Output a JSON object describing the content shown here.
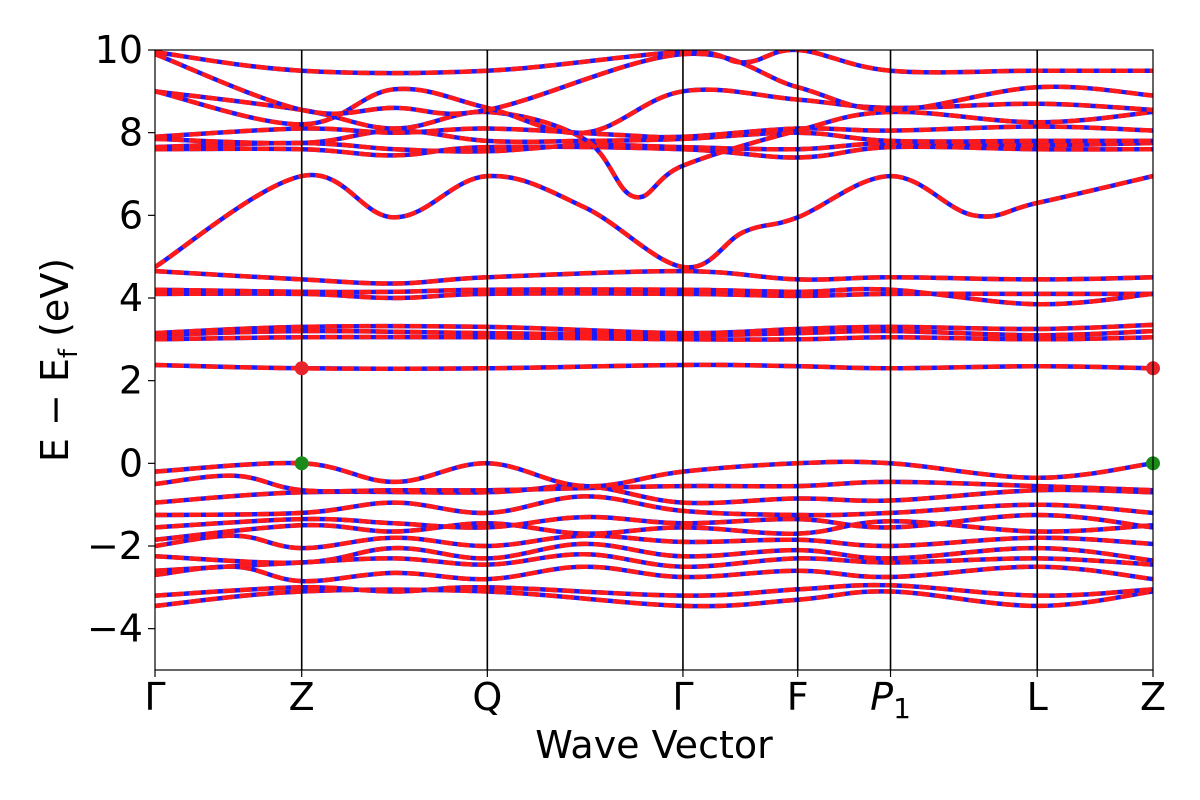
{
  "chart_data": {
    "type": "line",
    "title": "",
    "xlabel": "Wave Vector",
    "ylabel": "E  −  E",
    "ylabel_sub": "f",
    "ylabel_unit": " (eV)",
    "ylim": [
      -5,
      10
    ],
    "xlim": [
      0,
      1
    ],
    "grid": false,
    "y_ticks": [
      {
        "value": -4,
        "label": "−4"
      },
      {
        "value": -2,
        "label": "−2"
      },
      {
        "value": 0,
        "label": "0"
      },
      {
        "value": 2,
        "label": "2"
      },
      {
        "value": 4,
        "label": "4"
      },
      {
        "value": 6,
        "label": "6"
      },
      {
        "value": 8,
        "label": "8"
      },
      {
        "value": 10,
        "label": "10"
      }
    ],
    "kpoints": [
      {
        "label": "Γ",
        "x": 0.0
      },
      {
        "label": "Z",
        "x": 0.147
      },
      {
        "label": "Q",
        "x": 0.333
      },
      {
        "label": "Γ",
        "x": 0.529
      },
      {
        "label": "F",
        "x": 0.644
      },
      {
        "label": "P",
        "sub": "1",
        "x": 0.737
      },
      {
        "label": "L",
        "x": 0.884
      },
      {
        "label": "Z",
        "x": 1.0
      }
    ],
    "series_colors": {
      "solid": "#ff1a1a",
      "dashed": "#1a1aff"
    },
    "markers": [
      {
        "x": 0.147,
        "y": 2.3,
        "color": "#e8232c"
      },
      {
        "x": 1.0,
        "y": 2.3,
        "color": "#e8232c"
      },
      {
        "x": 0.147,
        "y": 0.0,
        "color": "#1a8a1a"
      },
      {
        "x": 1.0,
        "y": 0.0,
        "color": "#1a8a1a"
      }
    ],
    "bands": [
      [
        [
          0,
          -3.45
        ],
        [
          0.147,
          -3.1
        ],
        [
          0.333,
          -3.1
        ],
        [
          0.529,
          -3.45
        ],
        [
          0.644,
          -3.3
        ],
        [
          0.737,
          -3.1
        ],
        [
          0.884,
          -3.45
        ],
        [
          1.0,
          -3.1
        ]
      ],
      [
        [
          0,
          -3.2
        ],
        [
          0.147,
          -3.0
        ],
        [
          0.24,
          -3.1
        ],
        [
          0.333,
          -3.0
        ],
        [
          0.529,
          -3.2
        ],
        [
          0.644,
          -3.05
        ],
        [
          0.737,
          -2.95
        ],
        [
          0.884,
          -3.2
        ],
        [
          1.0,
          -3.05
        ]
      ],
      [
        [
          0,
          -2.7
        ],
        [
          0.08,
          -2.5
        ],
        [
          0.147,
          -2.85
        ],
        [
          0.24,
          -2.65
        ],
        [
          0.333,
          -2.8
        ],
        [
          0.43,
          -2.5
        ],
        [
          0.529,
          -2.75
        ],
        [
          0.644,
          -2.6
        ],
        [
          0.737,
          -2.75
        ],
        [
          0.884,
          -2.5
        ],
        [
          1.0,
          -2.8
        ]
      ],
      [
        [
          0,
          -2.6
        ],
        [
          0.147,
          -2.4
        ],
        [
          0.24,
          -2.3
        ],
        [
          0.333,
          -2.45
        ],
        [
          0.43,
          -2.2
        ],
        [
          0.529,
          -2.5
        ],
        [
          0.644,
          -2.3
        ],
        [
          0.737,
          -2.4
        ],
        [
          0.884,
          -2.3
        ],
        [
          1.0,
          -2.45
        ]
      ],
      [
        [
          0,
          -2.25
        ],
        [
          0.147,
          -2.4
        ],
        [
          0.24,
          -2.05
        ],
        [
          0.333,
          -2.3
        ],
        [
          0.43,
          -1.95
        ],
        [
          0.529,
          -2.25
        ],
        [
          0.644,
          -2.1
        ],
        [
          0.737,
          -2.3
        ],
        [
          0.884,
          -2.05
        ],
        [
          1.0,
          -2.35
        ]
      ],
      [
        [
          0,
          -2.0
        ],
        [
          0.08,
          -1.75
        ],
        [
          0.147,
          -2.05
        ],
        [
          0.24,
          -1.8
        ],
        [
          0.333,
          -2.0
        ],
        [
          0.43,
          -1.75
        ],
        [
          0.529,
          -1.9
        ],
        [
          0.644,
          -1.85
        ],
        [
          0.737,
          -2.0
        ],
        [
          0.884,
          -1.8
        ],
        [
          1.0,
          -1.95
        ]
      ],
      [
        [
          0,
          -1.85
        ],
        [
          0.147,
          -1.5
        ],
        [
          0.24,
          -1.65
        ],
        [
          0.333,
          -1.45
        ],
        [
          0.43,
          -1.7
        ],
        [
          0.529,
          -1.55
        ],
        [
          0.644,
          -1.7
        ],
        [
          0.737,
          -1.4
        ],
        [
          0.884,
          -1.65
        ],
        [
          1.0,
          -1.5
        ]
      ],
      [
        [
          0,
          -1.55
        ],
        [
          0.147,
          -1.35
        ],
        [
          0.24,
          -1.45
        ],
        [
          0.333,
          -1.55
        ],
        [
          0.43,
          -1.3
        ],
        [
          0.529,
          -1.45
        ],
        [
          0.644,
          -1.35
        ],
        [
          0.737,
          -1.55
        ],
        [
          0.884,
          -1.25
        ],
        [
          1.0,
          -1.55
        ]
      ],
      [
        [
          0,
          -1.25
        ],
        [
          0.147,
          -1.2
        ],
        [
          0.24,
          -0.95
        ],
        [
          0.333,
          -1.2
        ],
        [
          0.43,
          -0.8
        ],
        [
          0.529,
          -1.15
        ],
        [
          0.644,
          -1.25
        ],
        [
          0.737,
          -1.2
        ],
        [
          0.884,
          -1.0
        ],
        [
          1.0,
          -1.2
        ]
      ],
      [
        [
          0,
          -0.95
        ],
        [
          0.147,
          -0.7
        ],
        [
          0.333,
          -0.7
        ],
        [
          0.43,
          -0.55
        ],
        [
          0.529,
          -0.95
        ],
        [
          0.644,
          -0.85
        ],
        [
          0.737,
          -0.9
        ],
        [
          0.884,
          -0.65
        ],
        [
          1.0,
          -0.7
        ]
      ],
      [
        [
          0,
          -0.5
        ],
        [
          0.08,
          -0.3
        ],
        [
          0.147,
          -0.65
        ],
        [
          0.24,
          -0.65
        ],
        [
          0.333,
          -0.65
        ],
        [
          0.43,
          -0.6
        ],
        [
          0.529,
          -0.55
        ],
        [
          0.644,
          -0.55
        ],
        [
          0.737,
          -0.45
        ],
        [
          0.884,
          -0.55
        ],
        [
          1.0,
          -0.65
        ]
      ],
      [
        [
          0,
          -0.2
        ],
        [
          0.147,
          0.0
        ],
        [
          0.24,
          -0.45
        ],
        [
          0.333,
          0.0
        ],
        [
          0.43,
          -0.55
        ],
        [
          0.529,
          -0.2
        ],
        [
          0.644,
          0.0
        ],
        [
          0.737,
          0.0
        ],
        [
          0.884,
          -0.35
        ],
        [
          1.0,
          0.0
        ]
      ],
      [
        [
          0,
          2.38
        ],
        [
          0.147,
          2.3
        ],
        [
          0.333,
          2.3
        ],
        [
          0.529,
          2.38
        ],
        [
          0.644,
          2.35
        ],
        [
          0.737,
          2.3
        ],
        [
          0.884,
          2.35
        ],
        [
          1.0,
          2.3
        ]
      ],
      [
        [
          0,
          3.0
        ],
        [
          0.147,
          3.05
        ],
        [
          0.333,
          3.05
        ],
        [
          0.529,
          3.0
        ],
        [
          0.644,
          3.0
        ],
        [
          0.737,
          3.05
        ],
        [
          0.884,
          3.0
        ],
        [
          1.0,
          3.05
        ]
      ],
      [
        [
          0,
          3.1
        ],
        [
          0.147,
          3.2
        ],
        [
          0.333,
          3.15
        ],
        [
          0.529,
          3.1
        ],
        [
          0.644,
          3.15
        ],
        [
          0.737,
          3.2
        ],
        [
          0.884,
          3.1
        ],
        [
          1.0,
          3.2
        ]
      ],
      [
        [
          0,
          3.15
        ],
        [
          0.147,
          3.3
        ],
        [
          0.333,
          3.3
        ],
        [
          0.529,
          3.15
        ],
        [
          0.644,
          3.25
        ],
        [
          0.737,
          3.3
        ],
        [
          0.884,
          3.25
        ],
        [
          1.0,
          3.35
        ]
      ],
      [
        [
          0,
          4.1
        ],
        [
          0.147,
          4.1
        ],
        [
          0.24,
          4.0
        ],
        [
          0.333,
          4.1
        ],
        [
          0.529,
          4.1
        ],
        [
          0.644,
          4.05
        ],
        [
          0.737,
          4.1
        ],
        [
          0.884,
          4.1
        ],
        [
          1.0,
          4.1
        ]
      ],
      [
        [
          0,
          4.2
        ],
        [
          0.147,
          4.15
        ],
        [
          0.24,
          4.15
        ],
        [
          0.333,
          4.2
        ],
        [
          0.529,
          4.2
        ],
        [
          0.644,
          4.15
        ],
        [
          0.737,
          4.2
        ],
        [
          0.884,
          3.85
        ],
        [
          1.0,
          4.1
        ]
      ],
      [
        [
          0,
          4.65
        ],
        [
          0.147,
          4.45
        ],
        [
          0.24,
          4.35
        ],
        [
          0.333,
          4.5
        ],
        [
          0.529,
          4.65
        ],
        [
          0.644,
          4.45
        ],
        [
          0.737,
          4.5
        ],
        [
          0.884,
          4.45
        ],
        [
          1.0,
          4.5
        ]
      ],
      [
        [
          0,
          4.75
        ],
        [
          0.147,
          6.95
        ],
        [
          0.24,
          5.95
        ],
        [
          0.333,
          6.95
        ],
        [
          0.43,
          6.2
        ],
        [
          0.529,
          4.75
        ],
        [
          0.59,
          5.6
        ],
        [
          0.644,
          5.95
        ],
        [
          0.737,
          6.95
        ],
        [
          0.82,
          6.0
        ],
        [
          0.884,
          6.3
        ],
        [
          1.0,
          6.95
        ]
      ],
      [
        [
          0,
          7.6
        ],
        [
          0.147,
          7.6
        ],
        [
          0.24,
          7.45
        ],
        [
          0.333,
          7.65
        ],
        [
          0.529,
          7.6
        ],
        [
          0.644,
          7.4
        ],
        [
          0.737,
          7.65
        ],
        [
          0.884,
          7.6
        ],
        [
          1.0,
          7.6
        ]
      ],
      [
        [
          0,
          7.65
        ],
        [
          0.147,
          7.75
        ],
        [
          0.24,
          7.6
        ],
        [
          0.333,
          7.55
        ],
        [
          0.43,
          7.7
        ],
        [
          0.529,
          7.65
        ],
        [
          0.644,
          7.6
        ],
        [
          0.737,
          7.75
        ],
        [
          0.884,
          7.7
        ],
        [
          1.0,
          7.75
        ]
      ],
      [
        [
          0,
          7.85
        ],
        [
          0.147,
          7.75
        ],
        [
          0.24,
          8.05
        ],
        [
          0.333,
          7.8
        ],
        [
          0.43,
          7.8
        ],
        [
          0.529,
          7.85
        ],
        [
          0.644,
          8.0
        ],
        [
          0.737,
          7.8
        ],
        [
          0.884,
          7.8
        ],
        [
          1.0,
          7.8
        ]
      ],
      [
        [
          0,
          7.9
        ],
        [
          0.147,
          8.1
        ],
        [
          0.24,
          8.0
        ],
        [
          0.333,
          8.1
        ],
        [
          0.46,
          7.95
        ],
        [
          0.529,
          7.9
        ],
        [
          0.644,
          8.1
        ],
        [
          0.737,
          8.05
        ],
        [
          0.884,
          8.15
        ],
        [
          1.0,
          8.05
        ]
      ],
      [
        [
          0,
          9.0
        ],
        [
          0.147,
          8.55
        ],
        [
          0.24,
          8.1
        ],
        [
          0.333,
          8.5
        ],
        [
          0.43,
          7.85
        ],
        [
          0.48,
          6.45
        ],
        [
          0.529,
          7.2
        ],
        [
          0.644,
          8.05
        ],
        [
          0.737,
          8.5
        ],
        [
          0.884,
          8.25
        ],
        [
          1.0,
          8.5
        ]
      ],
      [
        [
          0,
          9.0
        ],
        [
          0.147,
          8.2
        ],
        [
          0.24,
          9.05
        ],
        [
          0.333,
          8.6
        ],
        [
          0.43,
          8.0
        ],
        [
          0.529,
          9.0
        ],
        [
          0.644,
          8.8
        ],
        [
          0.737,
          8.6
        ],
        [
          0.884,
          8.7
        ],
        [
          1.0,
          8.55
        ]
      ],
      [
        [
          0,
          9.9
        ],
        [
          0.147,
          8.55
        ],
        [
          0.24,
          8.6
        ],
        [
          0.333,
          8.55
        ],
        [
          0.529,
          9.9
        ],
        [
          0.644,
          9.1
        ],
        [
          0.737,
          8.55
        ],
        [
          0.884,
          9.1
        ],
        [
          1.0,
          8.9
        ]
      ],
      [
        [
          0,
          9.95
        ],
        [
          0.147,
          9.5
        ],
        [
          0.333,
          9.5
        ],
        [
          0.529,
          9.95
        ],
        [
          0.59,
          9.7
        ],
        [
          0.644,
          10.0
        ],
        [
          0.737,
          9.5
        ],
        [
          0.884,
          9.5
        ],
        [
          1.0,
          9.5
        ]
      ]
    ]
  }
}
